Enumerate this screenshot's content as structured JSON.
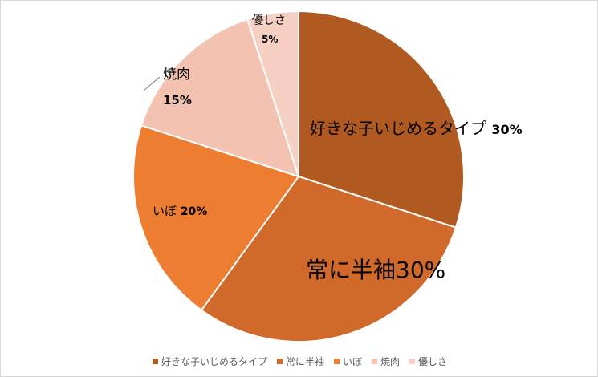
{
  "chart_data": {
    "type": "pie",
    "categories": [
      "好きな子いじめるタイプ",
      "常に半袖",
      "いぼ",
      "焼肉",
      "優しさ"
    ],
    "values": [
      30,
      30,
      20,
      15,
      5
    ],
    "colors": [
      "#b05a22",
      "#d0692a",
      "#ed7d31",
      "#f4c2b0",
      "#f7d0c4"
    ],
    "data_labels": [
      {
        "category": "好きな子いじめるタイプ",
        "value": "30%"
      },
      {
        "category": "常に半袖",
        "value": "30%"
      },
      {
        "category": "いぼ",
        "value": "20%"
      },
      {
        "category": "焼肉",
        "value": "15%"
      },
      {
        "category": "優しさ",
        "value": "5%"
      }
    ],
    "legend_position": "bottom"
  }
}
